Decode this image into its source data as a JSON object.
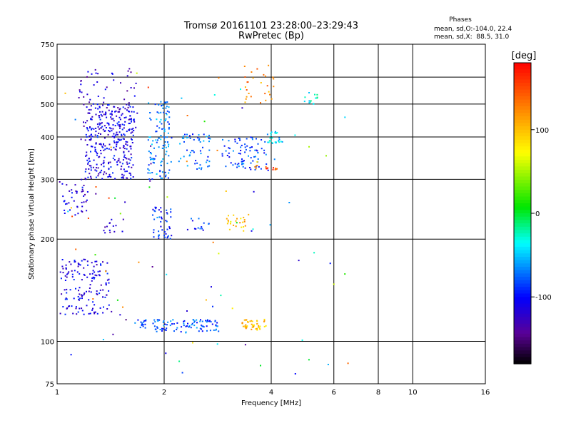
{
  "chart_data": {
    "type": "scatter",
    "title": "Tromsø 20161101 23:28:00–23:29:43",
    "subtitle": "RwPretec (Bp)",
    "xlabel": "Frequency [MHz]",
    "ylabel": "Stationary phase Virtual Height [km]",
    "x_scale": "log",
    "y_scale": "log",
    "xlim": [
      1,
      16
    ],
    "ylim": [
      75,
      750
    ],
    "x_ticks": [
      1,
      2,
      4,
      6,
      8,
      10,
      16
    ],
    "y_ticks": [
      75,
      100,
      200,
      300,
      400,
      500,
      600,
      750
    ],
    "grid": true,
    "stats": {
      "heading": "Phases",
      "line1": "mean, sd,O:-104.0, 22.4",
      "line2": "mean, sd,X:  88.5, 31.0"
    },
    "colorbar": {
      "label": "[deg]",
      "range": [
        -180,
        180
      ],
      "ticks": [
        "100",
        "0",
        "-100"
      ],
      "tick_values": [
        100,
        0,
        -100
      ]
    },
    "clusters": [
      {
        "fmin": 1.0,
        "fmax": 1.22,
        "hmin": 230,
        "hmax": 300,
        "phase": -115,
        "n": 45
      },
      {
        "fmin": 1.2,
        "fmax": 1.65,
        "hmin": 300,
        "hmax": 500,
        "phase": -110,
        "n": 320
      },
      {
        "fmin": 1.15,
        "fmax": 1.7,
        "hmin": 420,
        "hmax": 640,
        "phase": -120,
        "n": 70
      },
      {
        "fmin": 1.02,
        "fmax": 1.4,
        "hmin": 120,
        "hmax": 175,
        "phase": -110,
        "n": 150
      },
      {
        "fmin": 1.35,
        "fmax": 1.55,
        "hmin": 205,
        "hmax": 230,
        "phase": -115,
        "n": 14
      },
      {
        "fmin": 1.8,
        "fmax": 2.1,
        "hmin": 300,
        "hmax": 510,
        "phase": -70,
        "n": 120
      },
      {
        "fmin": 1.85,
        "fmax": 2.1,
        "hmin": 200,
        "hmax": 250,
        "phase": -95,
        "n": 45
      },
      {
        "fmin": 1.65,
        "fmax": 2.85,
        "hmin": 106,
        "hmax": 116,
        "phase": -80,
        "n": 110
      },
      {
        "fmin": 2.2,
        "fmax": 2.7,
        "hmin": 320,
        "hmax": 410,
        "phase": -75,
        "n": 55
      },
      {
        "fmin": 2.9,
        "fmax": 3.9,
        "hmin": 320,
        "hmax": 400,
        "phase": -85,
        "n": 80
      },
      {
        "fmin": 3.6,
        "fmax": 4.2,
        "hmin": 320,
        "hmax": 330,
        "phase": 150,
        "n": 14
      },
      {
        "fmin": 3.9,
        "fmax": 4.3,
        "hmin": 380,
        "hmax": 415,
        "phase": -50,
        "n": 25
      },
      {
        "fmin": 3.3,
        "fmax": 3.9,
        "hmin": 108,
        "hmax": 116,
        "phase": 100,
        "n": 45
      },
      {
        "fmin": 3.0,
        "fmax": 3.4,
        "hmin": 210,
        "hmax": 240,
        "phase": 100,
        "n": 22
      },
      {
        "fmin": 3.3,
        "fmax": 4.1,
        "hmin": 500,
        "hmax": 650,
        "phase": 120,
        "n": 28
      },
      {
        "fmin": 4.9,
        "fmax": 5.4,
        "hmin": 500,
        "hmax": 540,
        "phase": -30,
        "n": 14
      },
      {
        "fmin": 2.3,
        "fmax": 2.7,
        "hmin": 210,
        "hmax": 230,
        "phase": -90,
        "n": 14
      },
      {
        "fmin": 1.0,
        "fmax": 6.8,
        "hmin": 78,
        "hmax": 650,
        "phase": 0,
        "n": 90
      }
    ]
  }
}
